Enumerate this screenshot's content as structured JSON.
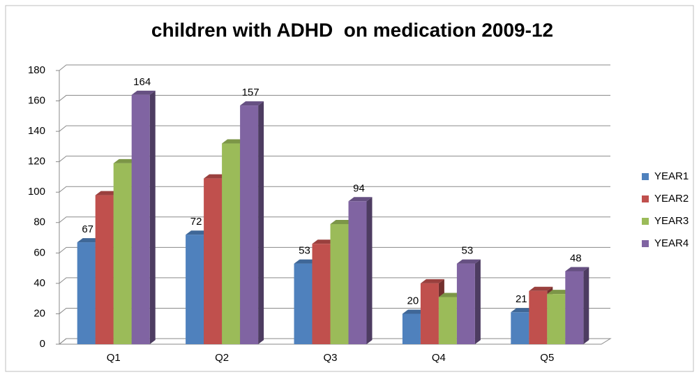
{
  "chart_data": {
    "type": "bar3d",
    "title": "children with ADHD  on medication 2009-12",
    "categories": [
      "Q1",
      "Q2",
      "Q3",
      "Q4",
      "Q5"
    ],
    "series": [
      {
        "name": "YEAR1",
        "color": "#4f81bd",
        "values": [
          67,
          72,
          53,
          20,
          21
        ],
        "data_labels": true
      },
      {
        "name": "YEAR2",
        "color": "#c0504d",
        "values": [
          98,
          109,
          66,
          40,
          35
        ],
        "data_labels": false
      },
      {
        "name": "YEAR3",
        "color": "#9bbb59",
        "values": [
          119,
          132,
          79,
          31,
          33
        ],
        "data_labels": false
      },
      {
        "name": "YEAR4",
        "color": "#8064a2",
        "values": [
          164,
          157,
          94,
          53,
          48
        ],
        "data_labels": true
      }
    ],
    "ylim": [
      0,
      180
    ],
    "yticks": [
      0,
      20,
      40,
      60,
      80,
      100,
      120,
      140,
      160,
      180
    ],
    "grid": true,
    "legend": "right"
  }
}
